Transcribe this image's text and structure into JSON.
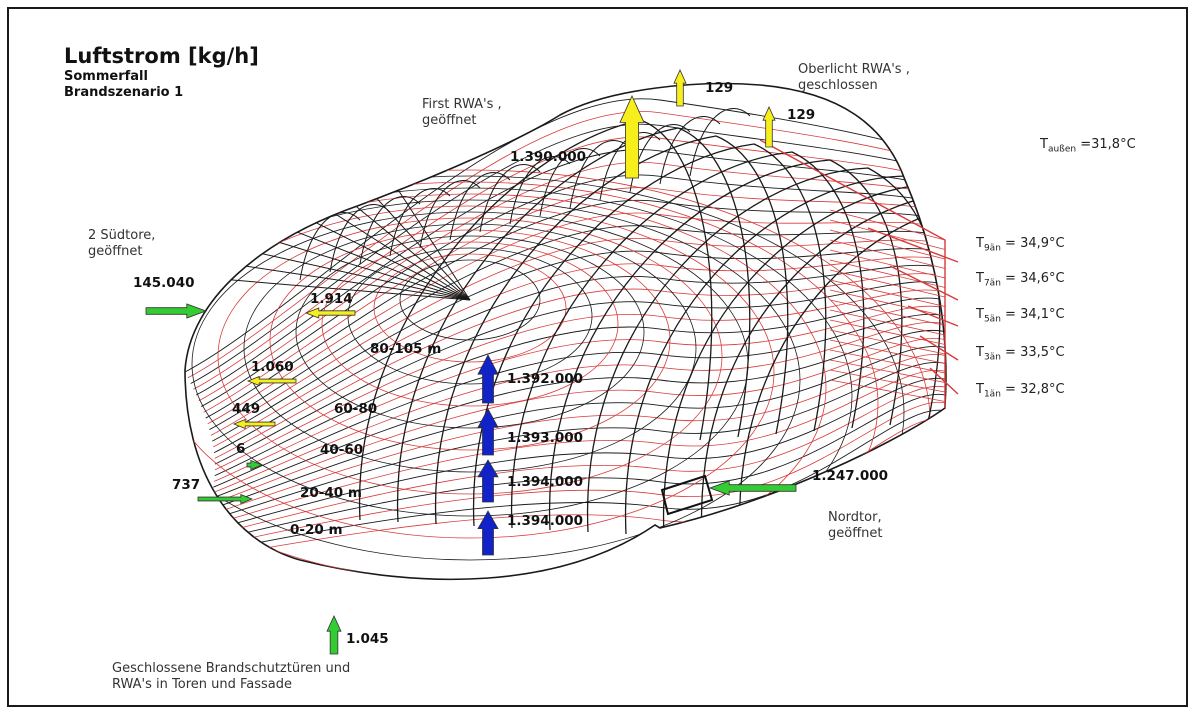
{
  "header": {
    "title": "Luftstrom [kg/h]",
    "subtitle_1": "Sommerfall",
    "subtitle_2": "Brandszenario 1"
  },
  "notes": {
    "first_rwa": [
      "First RWA's ,",
      "geöffnet"
    ],
    "oberlicht_rwa": [
      "Oberlicht RWA's ,",
      "geschlossen"
    ],
    "suedtore": [
      "2 Südtore,",
      "geöffnet"
    ],
    "nordtor": [
      "Nordtor,",
      "geöffnet"
    ],
    "bottom": [
      "Geschlossene Brandschutztüren und",
      "RWA's in Toren und Fassade"
    ]
  },
  "outside_temp": {
    "symbol": "T",
    "sub": "außen",
    "value": "=31,8°C"
  },
  "temperatures": [
    {
      "symbol": "T",
      "sub": "9än",
      "value": "= 34,9°C"
    },
    {
      "symbol": "T",
      "sub": "7än",
      "value": "= 34,6°C"
    },
    {
      "symbol": "T",
      "sub": "5än",
      "value": "= 34,1°C"
    },
    {
      "symbol": "T",
      "sub": "3än",
      "value": "= 33,5°C"
    },
    {
      "symbol": "T",
      "sub": "1än",
      "value": "= 32,8°C"
    }
  ],
  "zones": [
    "80-105 m",
    "60-80",
    "40-60",
    "20-40 m",
    "0-20 m"
  ],
  "flows": {
    "roof_first": "1.390.000",
    "oberlicht_1": "129",
    "oberlicht_2": "129",
    "suedtore": "145.040",
    "side_1": "1.914",
    "side_2": "1.060",
    "side_3": "449",
    "side_4": "6",
    "side_5": "737",
    "vertical_1": "1.392.000",
    "vertical_2": "1.393.000",
    "vertical_3": "1.394.000",
    "vertical_4": "1.394.000",
    "nordtor": "1.247.000",
    "bottom": "1.045"
  },
  "colors": {
    "grid_black": "#1a1a1a",
    "grid_red": "#d93a3a",
    "arrow_yellow": "#f7ef1b",
    "arrow_blue": "#1022c8",
    "arrow_green": "#33cc33"
  }
}
